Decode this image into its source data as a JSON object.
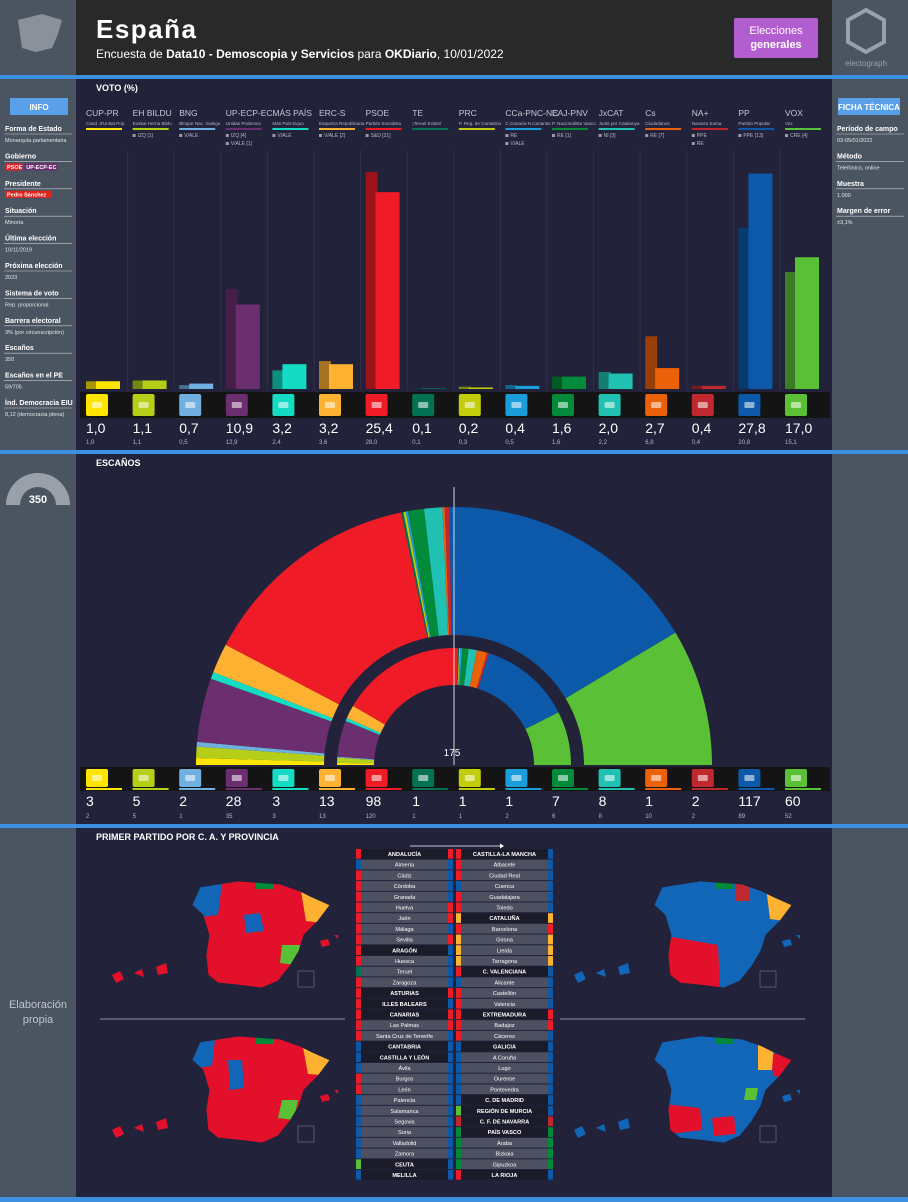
{
  "header": {
    "title": "España",
    "subtitle": [
      "Encuesta de ",
      "Data10 - Demoscopia y Servicios",
      " para ",
      "OKDiario",
      ", 10/01/2022"
    ],
    "badge": [
      "Elecciones",
      "generales"
    ],
    "logo": "electograph"
  },
  "info": {
    "title": "INFO",
    "items": [
      {
        "label": "Forma de Estado",
        "value": "Monarquía parlamentaria"
      },
      {
        "label": "Gobierno",
        "tags": [
          "PSOE",
          "UP-ECP-EC"
        ]
      },
      {
        "label": "Presidente",
        "tags": [
          "Pedro Sánchez"
        ]
      },
      {
        "label": "Situación",
        "value": "Minoría"
      },
      {
        "label": "Última elección",
        "value": "10/11/2019"
      },
      {
        "label": "Próxima elección",
        "value": "2023"
      },
      {
        "label": "Sistema de voto",
        "value": "Rep. proporcional"
      },
      {
        "label": "Barrera electoral",
        "value": "3% (por circunscripción)"
      },
      {
        "label": "Escaños",
        "value": "350"
      },
      {
        "label": "Escaños en el PE",
        "value": "59/705"
      },
      {
        "label": "Índ. Democracia EIU",
        "value": "8,12 (democracia plena)"
      }
    ]
  },
  "ficha": {
    "title": "FICHA TÉCNICA",
    "items": [
      {
        "label": "Período de campo",
        "value": "03-05/01/2022"
      },
      {
        "label": "Método",
        "value": "Telefónico, online"
      },
      {
        "label": "Muestra",
        "value": "1.000"
      },
      {
        "label": "Margen de error",
        "value": "±3,1%"
      }
    ]
  },
  "sidebar": {
    "credit": [
      "Elaboración",
      "propia"
    ]
  },
  "chart_data": [
    {
      "type": "bar",
      "title": "VOTO (%)",
      "categories": [
        "CUP-PR",
        "EH BILDU",
        "BNG",
        "UP-ECP-EC",
        "MÁS PAÍS",
        "ERC-S",
        "PSOE",
        "TE",
        "PRC",
        "CCa-PNC-NC",
        "EAJ-PNV",
        "JxCAT",
        "Cs",
        "NA+",
        "PP",
        "VOX"
      ],
      "subtitles": [
        "Cand. d'Unitat Pop.",
        "Euskal Herria Bildu",
        "Bloque Nac. Galego",
        "Unidas Podemos",
        "Más País-Equo",
        "Esquerra Republicana",
        "Partido Socialista",
        "¡Teruel Existe!",
        "P. Reg. de Cantabria",
        "C.Canaria-N.Canarias",
        "P. Nacionalista Vasco",
        "Junts per Catalunya",
        "Ciudadanos",
        "Navarra Suma",
        "Partido Popular",
        "Vox"
      ],
      "groups": [
        [],
        [
          "IZQ [1]"
        ],
        [
          "V/ALE"
        ],
        [
          "IZQ [4]",
          "V/ALE [1]"
        ],
        [
          "V/ALE"
        ],
        [
          "V/ALE [2]"
        ],
        [
          "S&D [21]"
        ],
        [],
        [],
        [
          "RE",
          "V/ALE"
        ],
        [
          "RE [1]"
        ],
        [
          "NI [3]"
        ],
        [
          "RE [7]"
        ],
        [
          "PPE",
          "RE"
        ],
        [
          "PPE [13]"
        ],
        [
          "CRE [4]"
        ]
      ],
      "colors": [
        "#ffe600",
        "#b5cf18",
        "#6fb0e0",
        "#6b2e6e",
        "#14dcc4",
        "#ffb232",
        "#ef1c27",
        "#037252",
        "#c2ce0c",
        "#1a9ddb",
        "#008a3a",
        "#20c0b2",
        "#eb6109",
        "#c0282f",
        "#0b59a8",
        "#5ac035"
      ],
      "ylim": [
        0,
        28
      ],
      "series": [
        {
          "values": [
            1.0,
            1.1,
            0.7,
            10.9,
            3.2,
            3.2,
            25.4,
            0.1,
            0.2,
            0.4,
            1.6,
            2.0,
            2.7,
            0.4,
            27.8,
            17.0
          ],
          "value_labels": [
            "1,0",
            "1,1",
            "0,7",
            "10,9",
            "3,2",
            "3,2",
            "25,4",
            "0,1",
            "0,2",
            "0,4",
            "1,6",
            "2,0",
            "2,7",
            "0,4",
            "27,8",
            "17,0"
          ]
        },
        {
          "values": [
            1.0,
            1.1,
            0.5,
            12.9,
            2.4,
            3.6,
            28.0,
            0.1,
            0.3,
            0.5,
            1.6,
            2.2,
            6.8,
            0.4,
            20.8,
            15.1
          ],
          "value_labels": [
            "1,0",
            "1,1",
            "0,5",
            "12,9",
            "2,4",
            "3,6",
            "28,0",
            "0,1",
            "0,3",
            "0,5",
            "1,6",
            "2,2",
            "6,8",
            "0,4",
            "20,8",
            "15,1"
          ]
        }
      ]
    },
    {
      "type": "parliament",
      "title": "ESCAÑOS",
      "total": 350,
      "majority": 175,
      "series": [
        {
          "values": [
            3,
            5,
            2,
            28,
            3,
            13,
            98,
            1,
            1,
            1,
            7,
            8,
            1,
            2,
            117,
            60
          ]
        },
        {
          "values": [
            2,
            5,
            1,
            35,
            3,
            13,
            120,
            1,
            1,
            2,
            6,
            8,
            10,
            2,
            89,
            52
          ]
        }
      ]
    }
  ],
  "maps": {
    "title": "PRIMER PARTIDO POR C. A. Y PROVINCIA",
    "columns": [
      [
        {
          "name": "ANDALUCÍA",
          "prev": "PSOE",
          "now": "PSOE",
          "provinces": [
            {
              "name": "Almería",
              "prev": "PP",
              "now": "PP"
            },
            {
              "name": "Cádiz",
              "prev": "PSOE",
              "now": "PP"
            },
            {
              "name": "Córdoba",
              "prev": "PSOE",
              "now": "PP"
            },
            {
              "name": "Granada",
              "prev": "PSOE",
              "now": "PP"
            },
            {
              "name": "Huelva",
              "prev": "PSOE",
              "now": "PSOE"
            },
            {
              "name": "Jaén",
              "prev": "PSOE",
              "now": "PSOE"
            },
            {
              "name": "Málaga",
              "prev": "PSOE",
              "now": "PP"
            },
            {
              "name": "Sevilla",
              "prev": "PSOE",
              "now": "PSOE"
            }
          ]
        },
        {
          "name": "ARAGÓN",
          "prev": "PSOE",
          "now": "PP",
          "provinces": [
            {
              "name": "Huesca",
              "prev": "PSOE",
              "now": "PP"
            },
            {
              "name": "Teruel",
              "prev": "TE",
              "now": "PP"
            },
            {
              "name": "Zaragoza",
              "prev": "PSOE",
              "now": "PP"
            }
          ]
        },
        {
          "name": "ASTURIAS",
          "prev": "PSOE",
          "now": "PSOE",
          "provinces": []
        },
        {
          "name": "ILLES BALEARS",
          "prev": "PSOE",
          "now": "PP",
          "provinces": []
        },
        {
          "name": "CANARIAS",
          "prev": "PSOE",
          "now": "PSOE",
          "provinces": [
            {
              "name": "Las Palmas",
              "prev": "PSOE",
              "now": "PSOE"
            },
            {
              "name": "Santa Cruz de Tenerife",
              "prev": "PSOE",
              "now": "PP"
            }
          ]
        },
        {
          "name": "CANTABRIA",
          "prev": "PP",
          "now": "PP",
          "provinces": []
        },
        {
          "name": "CASTILLA Y LEÓN",
          "prev": "PP",
          "now": "PP",
          "provinces": [
            {
              "name": "Ávila",
              "prev": "PP",
              "now": "PP"
            },
            {
              "name": "Burgos",
              "prev": "PSOE",
              "now": "PP"
            },
            {
              "name": "León",
              "prev": "PSOE",
              "now": "PP"
            },
            {
              "name": "Palencia",
              "prev": "PP",
              "now": "PP"
            },
            {
              "name": "Salamanca",
              "prev": "PP",
              "now": "PP"
            },
            {
              "name": "Segovia",
              "prev": "PP",
              "now": "PP"
            },
            {
              "name": "Soria",
              "prev": "PP",
              "now": "PP"
            },
            {
              "name": "Valladolid",
              "prev": "PP",
              "now": "PP"
            },
            {
              "name": "Zamora",
              "prev": "PP",
              "now": "PP"
            }
          ]
        },
        {
          "name": "CEUTA",
          "prev": "VOX",
          "now": "PP",
          "provinces": []
        },
        {
          "name": "MELILLA",
          "prev": "PP",
          "now": "PP",
          "provinces": []
        }
      ],
      [
        {
          "name": "CASTILLA-LA MANCHA",
          "prev": "PSOE",
          "now": "PP",
          "provinces": [
            {
              "name": "Albacete",
              "prev": "PSOE",
              "now": "PP"
            },
            {
              "name": "Ciudad Real",
              "prev": "PSOE",
              "now": "PP"
            },
            {
              "name": "Cuenca",
              "prev": "PP",
              "now": "PP"
            },
            {
              "name": "Guadalajara",
              "prev": "PSOE",
              "now": "PP"
            },
            {
              "name": "Toledo",
              "prev": "PSOE",
              "now": "PP"
            }
          ]
        },
        {
          "name": "CATALUÑA",
          "prev": "ERC-S",
          "now": "ERC-S",
          "provinces": [
            {
              "name": "Barcelona",
              "prev": "PSOE",
              "now": "PSOE"
            },
            {
              "name": "Girona",
              "prev": "ERC-S",
              "now": "ERC-S"
            },
            {
              "name": "Lleida",
              "prev": "ERC-S",
              "now": "ERC-S"
            },
            {
              "name": "Tarragona",
              "prev": "ERC-S",
              "now": "ERC-S"
            }
          ]
        },
        {
          "name": "C. VALENCIANA",
          "prev": "PSOE",
          "now": "PP",
          "provinces": [
            {
              "name": "Alicante",
              "prev": "PP",
              "now": "PP"
            },
            {
              "name": "Castellón",
              "prev": "PSOE",
              "now": "PP"
            },
            {
              "name": "Valencia",
              "prev": "PSOE",
              "now": "PP"
            }
          ]
        },
        {
          "name": "EXTREMADURA",
          "prev": "PSOE",
          "now": "PSOE",
          "provinces": [
            {
              "name": "Badajoz",
              "prev": "PSOE",
              "now": "PSOE"
            },
            {
              "name": "Cáceres",
              "prev": "PSOE",
              "now": "PP"
            }
          ]
        },
        {
          "name": "GALICIA",
          "prev": "PP",
          "now": "PP",
          "provinces": [
            {
              "name": "A Coruña",
              "prev": "PP",
              "now": "PP"
            },
            {
              "name": "Lugo",
              "prev": "PP",
              "now": "PP"
            },
            {
              "name": "Ourense",
              "prev": "PP",
              "now": "PP"
            },
            {
              "name": "Pontevedra",
              "prev": "PP",
              "now": "PP"
            }
          ]
        },
        {
          "name": "C. DE MADRID",
          "prev": "PP",
          "now": "PP",
          "provinces": []
        },
        {
          "name": "REGIÓN DE MURCIA",
          "prev": "VOX",
          "now": "PP",
          "provinces": []
        },
        {
          "name": "C. F. DE NAVARRA",
          "prev": "NA+",
          "now": "NA+",
          "provinces": []
        },
        {
          "name": "PAÍS VASCO",
          "prev": "EAJ-PNV",
          "now": "EAJ-PNV",
          "provinces": [
            {
              "name": "Araba",
              "prev": "EAJ-PNV",
              "now": "EAJ-PNV"
            },
            {
              "name": "Bizkaia",
              "prev": "EAJ-PNV",
              "now": "EAJ-PNV"
            },
            {
              "name": "Gipuzkoa",
              "prev": "EAJ-PNV",
              "now": "EAJ-PNV"
            }
          ]
        },
        {
          "name": "LA RIOJA",
          "prev": "PSOE",
          "now": "PP",
          "provinces": []
        }
      ]
    ]
  }
}
